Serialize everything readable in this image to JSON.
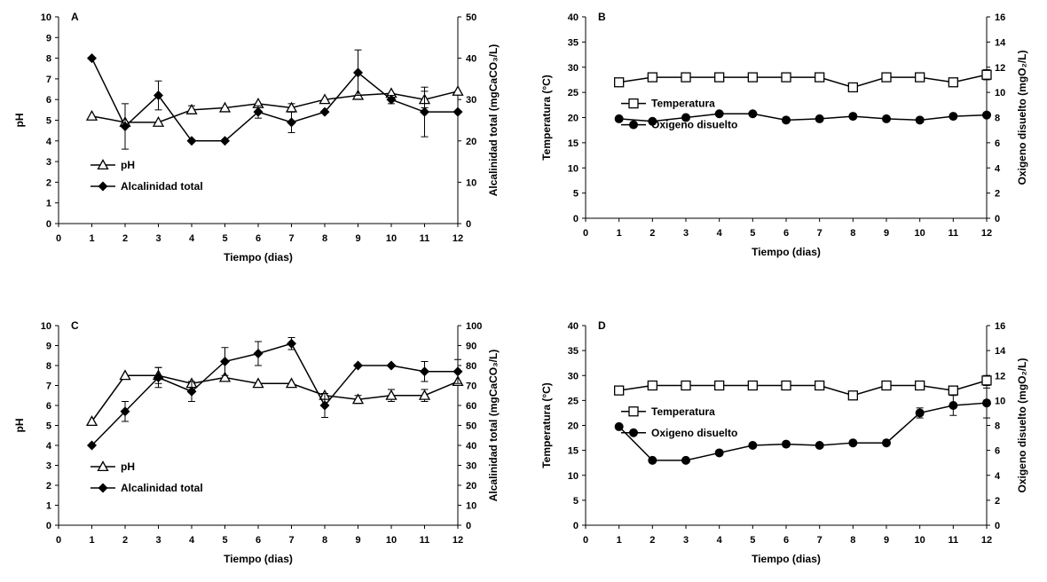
{
  "chart_data": [
    {
      "panel": "A",
      "type": "line",
      "x": [
        1,
        2,
        3,
        4,
        5,
        6,
        7,
        8,
        9,
        10,
        11,
        12
      ],
      "xlim": [
        0,
        12
      ],
      "xticks": [
        "0",
        "1",
        "2",
        "3",
        "4",
        "5",
        "6",
        "7",
        "8",
        "9",
        "10",
        "11",
        "12"
      ],
      "xlabel": "Tiempo (dias)",
      "ylabel": "pH",
      "ylim": [
        0,
        10
      ],
      "yticks": [
        "0",
        "1",
        "2",
        "3",
        "4",
        "5",
        "6",
        "7",
        "8",
        "9",
        "10"
      ],
      "y2label": "Alcalinidad total (mgCaCO₃/L)",
      "y2lim": [
        0,
        50
      ],
      "y2ticks": [
        "0",
        "10",
        "20",
        "30",
        "40",
        "50"
      ],
      "legend": "bottom-left",
      "grid": false,
      "series": [
        {
          "name": "pH",
          "axis": "left",
          "marker": "triangle-open",
          "values": [
            5.2,
            4.9,
            4.9,
            5.5,
            5.6,
            5.8,
            5.6,
            6.0,
            6.2,
            6.3,
            6.0,
            6.4
          ],
          "errors": [
            0,
            0,
            0,
            0.2,
            0,
            0,
            0.2,
            0,
            0,
            0,
            0.4,
            0
          ]
        },
        {
          "name": "Alcalinidad total",
          "axis": "right",
          "marker": "diamond-filled",
          "values": [
            40,
            23.5,
            31,
            20,
            20,
            27,
            24.5,
            27,
            36.5,
            30,
            27,
            27
          ],
          "errors": [
            0,
            5.5,
            3.5,
            0,
            0,
            1.5,
            2.5,
            0,
            5.5,
            1,
            6,
            0
          ]
        }
      ]
    },
    {
      "panel": "B",
      "type": "line",
      "x": [
        1,
        2,
        3,
        4,
        5,
        6,
        7,
        8,
        9,
        10,
        11,
        12
      ],
      "xlim": [
        0,
        12
      ],
      "xticks": [
        "0",
        "1",
        "2",
        "3",
        "4",
        "5",
        "6",
        "7",
        "8",
        "9",
        "10",
        "11",
        "12"
      ],
      "xlabel": "Tiempo (dias)",
      "ylabel": "Temperatura (°C)",
      "ylim": [
        0,
        40
      ],
      "yticks": [
        "0",
        "5",
        "10",
        "15",
        "20",
        "25",
        "30",
        "35",
        "40"
      ],
      "y2label": "Oxigeno disuelto (mgO₂/L)",
      "y2lim": [
        0,
        16
      ],
      "y2ticks": [
        "0",
        "2",
        "4",
        "6",
        "8",
        "10",
        "12",
        "14",
        "16"
      ],
      "legend": "center-left",
      "grid": false,
      "series": [
        {
          "name": "Temperatura",
          "axis": "left",
          "marker": "square-open",
          "values": [
            27,
            28,
            28,
            28,
            28,
            28,
            28,
            26,
            28,
            28,
            27,
            28.5
          ],
          "errors": [
            0,
            0,
            0,
            0,
            0,
            0,
            0,
            0,
            0,
            0,
            0,
            1
          ]
        },
        {
          "name": "Oxigeno disuelto",
          "axis": "right",
          "marker": "circle-filled",
          "values": [
            7.9,
            7.7,
            8.0,
            8.3,
            8.3,
            7.8,
            7.9,
            8.1,
            7.9,
            7.8,
            8.1,
            8.2
          ],
          "errors": [
            0,
            0,
            0,
            0,
            0,
            0,
            0,
            0,
            0,
            0,
            0,
            0
          ]
        }
      ]
    },
    {
      "panel": "C",
      "type": "line",
      "x": [
        1,
        2,
        3,
        4,
        5,
        6,
        7,
        8,
        9,
        10,
        11,
        12
      ],
      "xlim": [
        0,
        12
      ],
      "xticks": [
        "0",
        "1",
        "2",
        "3",
        "4",
        "5",
        "6",
        "7",
        "8",
        "9",
        "10",
        "11",
        "12"
      ],
      "xlabel": "Tiempo (dias)",
      "ylabel": "pH",
      "ylim": [
        0,
        10
      ],
      "yticks": [
        "0",
        "1",
        "2",
        "3",
        "4",
        "5",
        "6",
        "7",
        "8",
        "9",
        "10"
      ],
      "y2label": "Alcalinidad total (mgCaCO₃/L)",
      "y2lim": [
        0,
        100
      ],
      "y2ticks": [
        "0",
        "10",
        "20",
        "30",
        "40",
        "50",
        "60",
        "70",
        "80",
        "90",
        "100"
      ],
      "legend": "bottom-left",
      "grid": false,
      "series": [
        {
          "name": "pH",
          "axis": "left",
          "marker": "triangle-open",
          "values": [
            5.2,
            7.5,
            7.5,
            7.1,
            7.4,
            7.1,
            7.1,
            6.5,
            6.3,
            6.5,
            6.5,
            7.2
          ],
          "errors": [
            0,
            0,
            0.4,
            0,
            0,
            0,
            0,
            0,
            0.2,
            0.3,
            0.3,
            0
          ]
        },
        {
          "name": "Alcalinidad total",
          "axis": "right",
          "marker": "diamond-filled",
          "values": [
            40,
            57,
            74,
            67,
            82,
            86,
            91,
            60,
            80,
            80,
            77,
            77
          ],
          "errors": [
            0,
            5,
            5,
            5,
            7,
            6,
            3,
            6,
            0,
            0,
            5,
            6
          ]
        }
      ]
    },
    {
      "panel": "D",
      "type": "line",
      "x": [
        1,
        2,
        3,
        4,
        5,
        6,
        7,
        8,
        9,
        10,
        11,
        12
      ],
      "xlim": [
        0,
        12
      ],
      "xticks": [
        "0",
        "1",
        "2",
        "3",
        "4",
        "5",
        "6",
        "7",
        "8",
        "9",
        "10",
        "11",
        "12"
      ],
      "xlabel": "Tiempo (dias)",
      "ylabel": "Temperatura (°C)",
      "ylim": [
        0,
        40
      ],
      "yticks": [
        "0",
        "5",
        "10",
        "15",
        "20",
        "25",
        "30",
        "35",
        "40"
      ],
      "y2label": "Oxigeno disuelto (mgO₂/L)",
      "y2lim": [
        0,
        16
      ],
      "y2ticks": [
        "0",
        "2",
        "4",
        "6",
        "8",
        "10",
        "12",
        "14",
        "16"
      ],
      "legend": "center-left",
      "grid": false,
      "series": [
        {
          "name": "Temperatura",
          "axis": "left",
          "marker": "square-open",
          "values": [
            27,
            28,
            28,
            28,
            28,
            28,
            28,
            26,
            28,
            28,
            27,
            29
          ],
          "errors": [
            0,
            0,
            0,
            0,
            0,
            0,
            0,
            0,
            0,
            0,
            0,
            1
          ]
        },
        {
          "name": "Oxigeno disuelto",
          "axis": "right",
          "marker": "circle-filled",
          "values": [
            7.9,
            5.2,
            5.2,
            5.8,
            6.4,
            6.5,
            6.4,
            6.6,
            6.6,
            9.0,
            9.6,
            9.8
          ],
          "errors": [
            0,
            0,
            0,
            0,
            0,
            0,
            0,
            0,
            0,
            0.4,
            0.8,
            1.2
          ]
        }
      ]
    }
  ]
}
